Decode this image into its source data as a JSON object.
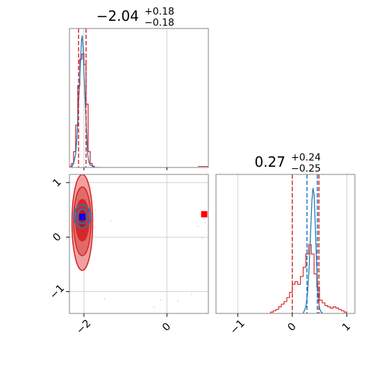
{
  "chart_data": {
    "type": "corner",
    "parameters": [
      {
        "title_main": "−2.04",
        "title_sup": "+0.18",
        "title_sub": "−0.18",
        "range": [
          -2.35,
          1.0
        ],
        "ticks": [
          -2,
          0
        ],
        "tick_labels": [
          "−2",
          "0"
        ]
      },
      {
        "title_main": "0.27",
        "title_sup": "+0.24",
        "title_sub": "−0.25",
        "range": [
          -1.4,
          1.15
        ],
        "ticks": [
          -1,
          0,
          1
        ],
        "tick_labels": [
          "−1",
          "0",
          "1"
        ]
      }
    ],
    "joint_yticks": [
      -1,
      0,
      1
    ],
    "joint_ytick_labels": [
      "−1",
      "0",
      "1"
    ],
    "grid": true,
    "colors": {
      "red": "#d62728",
      "blue": "#1f77b4",
      "marker_blue": "#0000ff",
      "marker_red": "#ff0000"
    },
    "red_quantiles": {
      "p1": [
        -2.13,
        -1.95
      ],
      "p2": [
        0.0,
        0.49
      ]
    },
    "blue_quantiles": {
      "p1": [
        -2.13,
        -1.95
      ],
      "p2": [
        0.27,
        0.46
      ]
    },
    "hist1_red": {
      "edges": [
        -2.35,
        -2.3,
        -2.25,
        -2.2,
        -2.15,
        -2.1,
        -2.05,
        -2.0,
        -1.95,
        -1.9,
        -1.85,
        -1.8,
        -1.75,
        -1.7,
        -1.65,
        -1.6
      ],
      "counts": [
        0.01,
        0.03,
        0.12,
        0.32,
        0.62,
        0.82,
        0.86,
        0.78,
        0.48,
        0.12,
        0.03,
        0.01,
        0.0,
        0.0,
        0.0
      ]
    },
    "hist1_blue": {
      "x": [
        -2.3,
        -2.25,
        -2.2,
        -2.17,
        -2.14,
        -2.11,
        -2.08,
        -2.06,
        -2.04,
        -2.02,
        -2.0,
        -1.97,
        -1.94,
        -1.91,
        -1.88,
        -1.85,
        -1.8,
        -1.75
      ],
      "y": [
        0.0,
        0.03,
        0.1,
        0.22,
        0.42,
        0.62,
        0.82,
        0.96,
        1.0,
        0.9,
        0.72,
        0.5,
        0.28,
        0.1,
        0.04,
        0.02,
        0.01,
        0.0
      ]
    },
    "hist2_red": {
      "edges": [
        -0.4,
        -0.35,
        -0.3,
        -0.25,
        -0.2,
        -0.15,
        -0.1,
        -0.05,
        0.0,
        0.05,
        0.1,
        0.15,
        0.2,
        0.25,
        0.3,
        0.35,
        0.4,
        0.45,
        0.5,
        0.55,
        0.6,
        0.65,
        0.7,
        0.75,
        0.8,
        0.85,
        0.9,
        0.95,
        1.0
      ],
      "counts": [
        0.01,
        0.02,
        0.03,
        0.05,
        0.07,
        0.09,
        0.12,
        0.16,
        0.22,
        0.24,
        0.22,
        0.28,
        0.35,
        0.45,
        0.52,
        0.45,
        0.3,
        0.2,
        0.1,
        0.08,
        0.06,
        0.05,
        0.04,
        0.05,
        0.04,
        0.03,
        0.02,
        0.01
      ]
    },
    "hist2_blue": {
      "x": [
        0.2,
        0.25,
        0.28,
        0.31,
        0.34,
        0.36,
        0.38,
        0.4,
        0.42,
        0.44,
        0.46,
        0.48,
        0.5,
        0.53,
        0.56
      ],
      "y": [
        0.0,
        0.05,
        0.15,
        0.35,
        0.65,
        0.85,
        0.95,
        0.9,
        0.7,
        0.45,
        0.25,
        0.1,
        0.04,
        0.01,
        0.0
      ]
    },
    "joint_red_contours": [
      {
        "cx": -2.04,
        "cy": 0.27,
        "rx": 0.25,
        "ry": 0.88,
        "fill": "#f0a0a0"
      },
      {
        "cx": -2.04,
        "cy": 0.29,
        "rx": 0.21,
        "ry": 0.63,
        "fill": "#e06a6a"
      },
      {
        "cx": -2.04,
        "cy": 0.31,
        "rx": 0.16,
        "ry": 0.38,
        "fill": "#d62728"
      },
      {
        "cx": -2.04,
        "cy": 0.33,
        "rx": 0.1,
        "ry": 0.18,
        "fill": "#b01818"
      }
    ],
    "joint_blue_contours": [
      {
        "cx": -2.04,
        "cy": 0.38,
        "rx": 0.2,
        "ry": 0.21
      },
      {
        "cx": -2.04,
        "cy": 0.38,
        "rx": 0.13,
        "ry": 0.13
      }
    ],
    "marker_blue": [
      -2.04,
      0.37
    ],
    "marker_red": [
      0.9,
      0.42
    ],
    "scatter_points": [
      [
        -2.22,
        0.85
      ],
      [
        -2.18,
        -0.38
      ],
      [
        -1.85,
        -0.2
      ],
      [
        -2.2,
        0.55
      ],
      [
        -1.82,
        0.9
      ],
      [
        -2.25,
        -0.05
      ],
      [
        -1.88,
        0.72
      ],
      [
        -2.1,
        -0.45
      ],
      [
        -1.95,
        0.95
      ],
      [
        -1.5,
        -1.13
      ],
      [
        -1.35,
        0.3
      ],
      [
        -1.72,
        0.5
      ],
      [
        0.75,
        0.2
      ],
      [
        0.85,
        -0.02
      ],
      [
        0.92,
        0.27
      ],
      [
        -0.3,
        -1.28
      ],
      [
        0.6,
        -1.05
      ],
      [
        -0.15,
        -1.15
      ],
      [
        0.27,
        -1.17
      ]
    ]
  }
}
